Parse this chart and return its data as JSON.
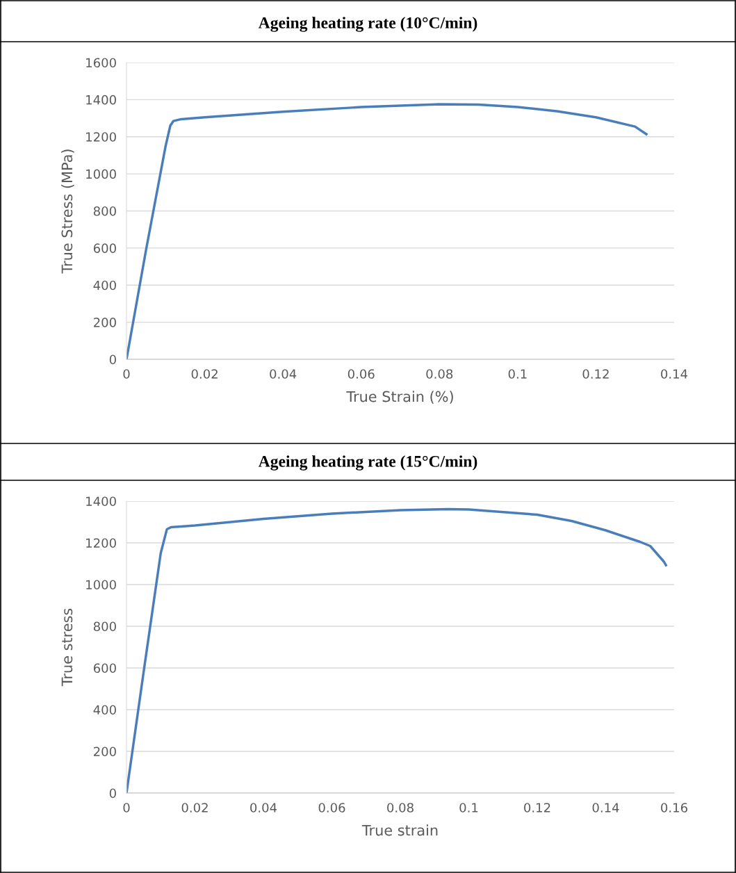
{
  "chart_data": [
    {
      "type": "line",
      "title": "Ageing heating rate (10°C/min)",
      "xlabel": "True Strain (%)",
      "ylabel": "True Stress (MPa)",
      "grid": "y",
      "legend": false,
      "marker": "none",
      "line_style": "solid",
      "xlim": [
        0,
        0.14
      ],
      "xticks": [
        0,
        0.02,
        0.04,
        0.06,
        0.08,
        0.1,
        0.12,
        0.14
      ],
      "ylim": [
        0,
        1600
      ],
      "yticks": [
        0,
        200,
        400,
        600,
        800,
        1000,
        1200,
        1400,
        1600
      ],
      "series": [
        {
          "color": "#4a7ebb",
          "x": [
            0,
            0.005,
            0.01,
            0.0112,
            0.012,
            0.014,
            0.02,
            0.04,
            0.06,
            0.08,
            0.09,
            0.1,
            0.11,
            0.12,
            0.13,
            0.1329
          ],
          "values": [
            0,
            590,
            1150,
            1260,
            1285,
            1295,
            1305,
            1335,
            1360,
            1375,
            1373,
            1360,
            1338,
            1305,
            1255,
            1214
          ]
        }
      ]
    },
    {
      "type": "line",
      "title": "Ageing heating rate (15°C/min)",
      "xlabel": "True strain",
      "ylabel": "True stress",
      "grid": "y",
      "legend": false,
      "marker": "none",
      "line_style": "solid",
      "xlim": [
        0,
        0.16
      ],
      "xticks": [
        0,
        0.02,
        0.04,
        0.06,
        0.08,
        0.1,
        0.12,
        0.14,
        0.16
      ],
      "ylim": [
        0,
        1400
      ],
      "yticks": [
        0,
        200,
        400,
        600,
        800,
        1000,
        1200,
        1400
      ],
      "series": [
        {
          "color": "#4a7ebb",
          "x": [
            0,
            0.005,
            0.01,
            0.0118,
            0.013,
            0.02,
            0.04,
            0.06,
            0.08,
            0.094,
            0.1,
            0.12,
            0.13,
            0.14,
            0.15,
            0.153,
            0.157,
            0.1576
          ],
          "values": [
            0,
            580,
            1150,
            1265,
            1275,
            1283,
            1315,
            1340,
            1357,
            1362,
            1360,
            1335,
            1305,
            1260,
            1205,
            1185,
            1110,
            1093
          ]
        }
      ]
    }
  ]
}
